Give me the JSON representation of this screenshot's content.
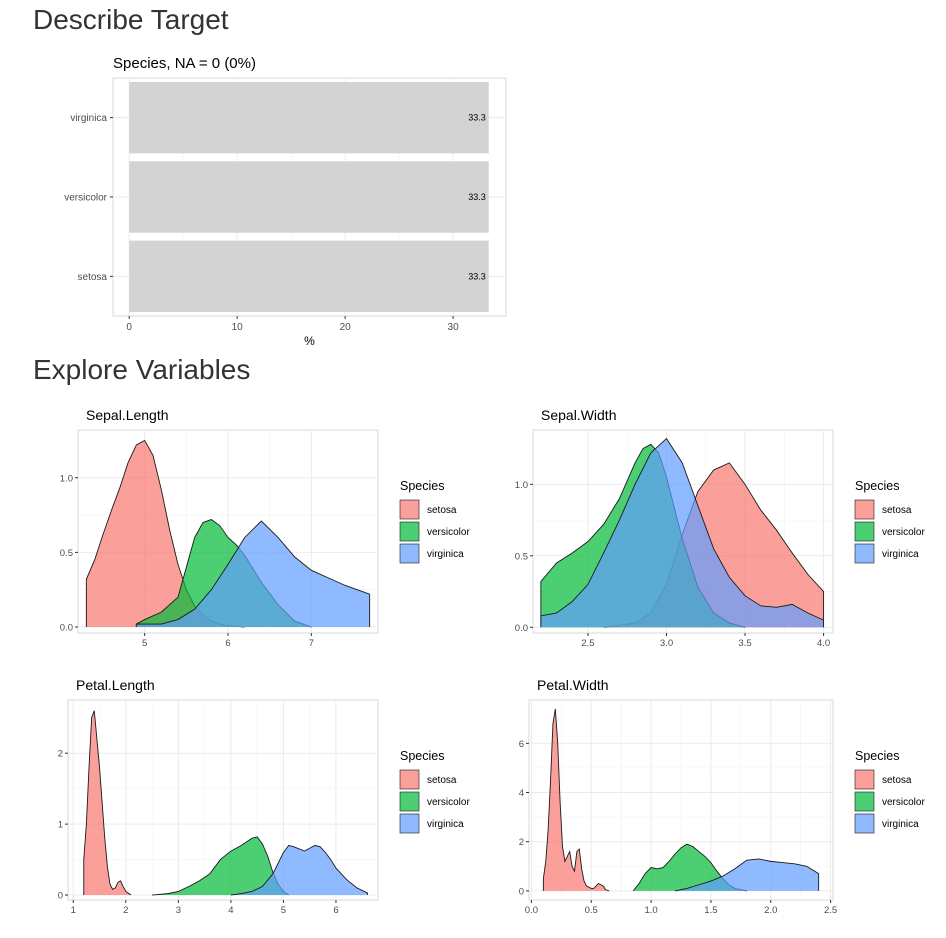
{
  "sections": {
    "describe_target": "Describe Target",
    "explore_variables": "Explore Variables"
  },
  "colors": {
    "setosa": "#F8766D",
    "versicolor": "#00BA38",
    "virginica": "#619CFF",
    "bar": "#d3d3d3",
    "grid": "#ebebeb",
    "panel_border": "#d9d9d9"
  },
  "chart_data": [
    {
      "type": "bar",
      "orientation": "horizontal",
      "title": "Species, NA = 0 (0%)",
      "categories": [
        "virginica",
        "versicolor",
        "setosa"
      ],
      "values": [
        33.3,
        33.3,
        33.3
      ],
      "data_labels": [
        "33.3",
        "33.3",
        "33.3"
      ],
      "xlabel": "%",
      "ylabel": "",
      "xlim": [
        -1.5,
        34.9
      ],
      "xticks": [
        0,
        10,
        20,
        30
      ],
      "grid": true
    },
    {
      "type": "area",
      "subtype": "density",
      "title": "Sepal.Length",
      "xlim": [
        4.2,
        7.8
      ],
      "ylim": [
        -0.04,
        1.32
      ],
      "xticks": [
        5,
        6,
        7
      ],
      "yticks": [
        0.0,
        0.5,
        1.0
      ],
      "xtick_labels": [
        "5",
        "6",
        "7"
      ],
      "ytick_labels": [
        "0.0",
        "0.5",
        "1.0"
      ],
      "legend": {
        "title": "Species",
        "position": "right",
        "entries": [
          "setosa",
          "versicolor",
          "virginica"
        ]
      },
      "series": [
        {
          "name": "setosa",
          "x": [
            4.3,
            4.4,
            4.5,
            4.6,
            4.7,
            4.8,
            4.9,
            5.0,
            5.1,
            5.2,
            5.3,
            5.4,
            5.5,
            5.6,
            5.7,
            5.8,
            5.9,
            6.0,
            6.2
          ],
          "y": [
            0.32,
            0.45,
            0.62,
            0.78,
            0.93,
            1.1,
            1.22,
            1.25,
            1.15,
            0.92,
            0.65,
            0.42,
            0.25,
            0.14,
            0.08,
            0.04,
            0.02,
            0.01,
            0.0
          ]
        },
        {
          "name": "versicolor",
          "x": [
            4.9,
            5.0,
            5.2,
            5.4,
            5.5,
            5.6,
            5.7,
            5.8,
            5.9,
            6.0,
            6.1,
            6.2,
            6.4,
            6.6,
            6.8,
            7.0
          ],
          "y": [
            0.02,
            0.05,
            0.1,
            0.2,
            0.4,
            0.6,
            0.7,
            0.72,
            0.68,
            0.6,
            0.55,
            0.48,
            0.3,
            0.15,
            0.04,
            0.0
          ]
        },
        {
          "name": "virginica",
          "x": [
            4.9,
            5.2,
            5.4,
            5.6,
            5.8,
            6.0,
            6.2,
            6.4,
            6.6,
            6.8,
            7.0,
            7.2,
            7.4,
            7.6,
            7.7
          ],
          "y": [
            0.02,
            0.02,
            0.05,
            0.12,
            0.25,
            0.42,
            0.6,
            0.71,
            0.6,
            0.47,
            0.38,
            0.33,
            0.28,
            0.24,
            0.22
          ]
        }
      ]
    },
    {
      "type": "area",
      "subtype": "density",
      "title": "Sepal.Width",
      "xlim": [
        2.15,
        4.06
      ],
      "ylim": [
        -0.04,
        1.38
      ],
      "xticks": [
        2.5,
        3.0,
        3.5,
        4.0
      ],
      "yticks": [
        0.0,
        0.5,
        1.0
      ],
      "xtick_labels": [
        "2.5",
        "3.0",
        "3.5",
        "4.0"
      ],
      "ytick_labels": [
        "0.0",
        "0.5",
        "1.0"
      ],
      "legend": {
        "title": "Species",
        "position": "right",
        "entries": [
          "setosa",
          "versicolor",
          "virginica"
        ]
      },
      "series": [
        {
          "name": "setosa",
          "x": [
            2.6,
            2.8,
            2.9,
            3.0,
            3.1,
            3.2,
            3.3,
            3.4,
            3.5,
            3.6,
            3.7,
            3.8,
            3.9,
            4.0
          ],
          "y": [
            0.0,
            0.03,
            0.1,
            0.3,
            0.65,
            0.95,
            1.1,
            1.15,
            1.0,
            0.82,
            0.68,
            0.52,
            0.37,
            0.25
          ]
        },
        {
          "name": "versicolor",
          "x": [
            2.2,
            2.3,
            2.4,
            2.5,
            2.6,
            2.7,
            2.8,
            2.85,
            2.9,
            2.95,
            3.0,
            3.1,
            3.2,
            3.3,
            3.4,
            3.5
          ],
          "y": [
            0.32,
            0.45,
            0.52,
            0.6,
            0.72,
            0.9,
            1.15,
            1.25,
            1.28,
            1.22,
            1.05,
            0.62,
            0.28,
            0.1,
            0.03,
            0.0
          ]
        },
        {
          "name": "virginica",
          "x": [
            2.2,
            2.3,
            2.4,
            2.5,
            2.6,
            2.7,
            2.8,
            2.9,
            3.0,
            3.1,
            3.2,
            3.3,
            3.4,
            3.5,
            3.6,
            3.7,
            3.8,
            3.9,
            4.0
          ],
          "y": [
            0.08,
            0.1,
            0.18,
            0.3,
            0.52,
            0.75,
            1.0,
            1.22,
            1.32,
            1.15,
            0.85,
            0.55,
            0.35,
            0.22,
            0.15,
            0.14,
            0.16,
            0.1,
            0.05
          ]
        }
      ]
    },
    {
      "type": "area",
      "subtype": "density",
      "title": "Petal.Length",
      "xlim": [
        0.9,
        6.8
      ],
      "ylim": [
        -0.07,
        2.75
      ],
      "xticks": [
        1,
        2,
        3,
        4,
        5,
        6
      ],
      "yticks": [
        0,
        1,
        2
      ],
      "xtick_labels": [
        "1",
        "2",
        "3",
        "4",
        "5",
        "6"
      ],
      "ytick_labels": [
        "0",
        "1",
        "2"
      ],
      "legend": {
        "title": "Species",
        "position": "right",
        "entries": [
          "setosa",
          "versicolor",
          "virginica"
        ]
      },
      "series": [
        {
          "name": "setosa",
          "x": [
            1.2,
            1.25,
            1.3,
            1.35,
            1.4,
            1.45,
            1.5,
            1.55,
            1.6,
            1.65,
            1.7,
            1.75,
            1.8,
            1.85,
            1.9,
            1.95,
            2.0,
            2.1
          ],
          "y": [
            0.5,
            1.0,
            1.8,
            2.5,
            2.6,
            2.2,
            1.8,
            1.3,
            0.8,
            0.4,
            0.15,
            0.08,
            0.1,
            0.18,
            0.2,
            0.12,
            0.05,
            0.0
          ]
        },
        {
          "name": "versicolor",
          "x": [
            2.5,
            2.8,
            3.0,
            3.2,
            3.4,
            3.6,
            3.8,
            4.0,
            4.2,
            4.4,
            4.5,
            4.6,
            4.7,
            4.8,
            4.9,
            5.0,
            5.1
          ],
          "y": [
            0.0,
            0.02,
            0.05,
            0.12,
            0.2,
            0.3,
            0.5,
            0.62,
            0.7,
            0.8,
            0.82,
            0.72,
            0.55,
            0.32,
            0.15,
            0.05,
            0.0
          ]
        },
        {
          "name": "virginica",
          "x": [
            4.0,
            4.2,
            4.4,
            4.6,
            4.8,
            4.9,
            5.0,
            5.1,
            5.2,
            5.4,
            5.5,
            5.6,
            5.7,
            5.8,
            5.9,
            6.0,
            6.2,
            6.4,
            6.6
          ],
          "y": [
            0.0,
            0.02,
            0.05,
            0.12,
            0.3,
            0.45,
            0.6,
            0.7,
            0.68,
            0.62,
            0.66,
            0.7,
            0.68,
            0.6,
            0.5,
            0.38,
            0.22,
            0.1,
            0.03
          ]
        }
      ]
    },
    {
      "type": "area",
      "subtype": "density",
      "title": "Petal.Width",
      "xlim": [
        -0.02,
        2.52
      ],
      "ylim": [
        -0.37,
        7.76
      ],
      "xticks": [
        0.0,
        0.5,
        1.0,
        1.5,
        2.0,
        2.5
      ],
      "yticks": [
        0,
        2,
        4,
        6
      ],
      "xtick_labels": [
        "0.0",
        "0.5",
        "1.0",
        "1.5",
        "2.0",
        "2.5"
      ],
      "ytick_labels": [
        "0",
        "2",
        "4",
        "6"
      ],
      "legend": {
        "title": "Species",
        "position": "right",
        "entries": [
          "setosa",
          "versicolor",
          "virginica"
        ]
      },
      "series": [
        {
          "name": "setosa",
          "x": [
            0.1,
            0.12,
            0.14,
            0.16,
            0.18,
            0.2,
            0.22,
            0.24,
            0.26,
            0.28,
            0.3,
            0.32,
            0.34,
            0.36,
            0.38,
            0.4,
            0.42,
            0.44,
            0.46,
            0.48,
            0.5,
            0.52,
            0.54,
            0.56,
            0.58,
            0.6,
            0.62,
            0.65
          ],
          "y": [
            0.5,
            1.2,
            2.5,
            4.5,
            6.8,
            7.4,
            6.0,
            3.6,
            1.8,
            1.2,
            1.4,
            1.6,
            1.0,
            0.8,
            1.6,
            1.7,
            0.9,
            0.4,
            0.2,
            0.15,
            0.1,
            0.1,
            0.2,
            0.3,
            0.25,
            0.2,
            0.05,
            0.0
          ]
        },
        {
          "name": "versicolor",
          "x": [
            0.85,
            0.9,
            0.95,
            1.0,
            1.05,
            1.1,
            1.15,
            1.2,
            1.25,
            1.3,
            1.35,
            1.4,
            1.45,
            1.5,
            1.55,
            1.6,
            1.65,
            1.7,
            1.8
          ],
          "y": [
            0.0,
            0.3,
            0.7,
            0.95,
            0.9,
            0.95,
            1.2,
            1.5,
            1.75,
            1.9,
            1.8,
            1.6,
            1.4,
            1.15,
            0.8,
            0.5,
            0.25,
            0.1,
            0.0
          ]
        },
        {
          "name": "virginica",
          "x": [
            1.2,
            1.3,
            1.4,
            1.5,
            1.6,
            1.7,
            1.8,
            1.9,
            2.0,
            2.1,
            2.2,
            2.3,
            2.4
          ],
          "y": [
            0.0,
            0.1,
            0.25,
            0.4,
            0.6,
            0.9,
            1.25,
            1.3,
            1.2,
            1.15,
            1.1,
            1.0,
            0.7
          ]
        }
      ]
    }
  ]
}
